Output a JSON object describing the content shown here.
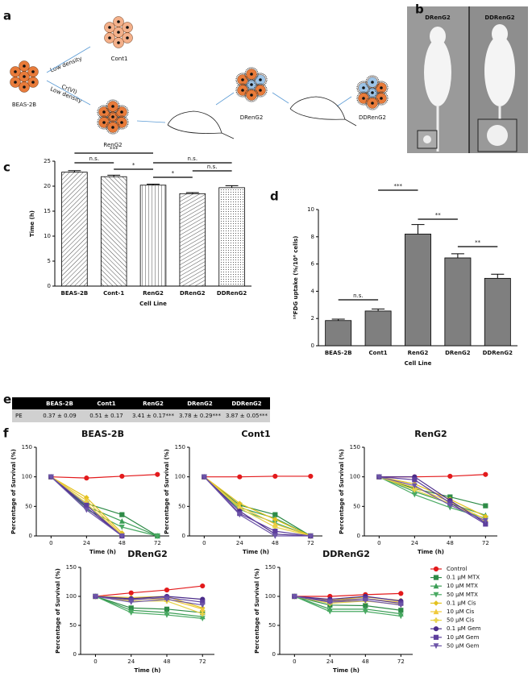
{
  "panel_labels": [
    "a",
    "b",
    "c",
    "d",
    "e",
    "f"
  ],
  "diagram": {
    "labels": [
      "BEAS-2B",
      "Cont1",
      "Low density",
      "Cr(VI)",
      "Low density",
      "RenG2",
      "DRenG2",
      "DDRenG2"
    ]
  },
  "photo": {
    "labels": [
      "DRenG2",
      "DDRenG2"
    ]
  },
  "table": {
    "header": [
      "BEAS-2B",
      "Cont1",
      "RenG2",
      "DRenG2",
      "DDRenG2"
    ],
    "rows": [
      [
        "PE",
        "0.37 ± 0.09",
        "0.51 ± 0.17",
        "3.41 ± 0.17***",
        "3.78 ± 0.29***",
        "3.87 ± 0.05***"
      ]
    ]
  },
  "chart_data": [
    {
      "type": "bar",
      "pattern": true,
      "color": "#222222",
      "ylabel": "Time (h)",
      "xlabel": "Cell Line",
      "categories": [
        "BEAS-2B",
        "Cont-1",
        "RenG2",
        "DRenG2",
        "DDRenG2"
      ],
      "values": [
        22.8,
        21.9,
        20.2,
        18.5,
        19.7
      ],
      "errors": [
        0.3,
        0.3,
        0.2,
        0.2,
        0.4
      ],
      "ylim": [
        0,
        25
      ],
      "yticks": [
        0,
        5,
        10,
        15,
        20,
        25
      ],
      "annotations": [
        "***",
        "n.s.",
        "n.s.",
        "*",
        "*",
        "n.s."
      ]
    },
    {
      "type": "bar",
      "color": "#7f7f7f",
      "ylabel": "¹⁸FDG uptake (%/10⁶ cells)",
      "xlabel": "Cell Line",
      "categories": [
        "BEAS-2B",
        "Cont1",
        "RenG2",
        "DRenG2",
        "DDRenG2"
      ],
      "values": [
        1.85,
        2.55,
        8.2,
        6.45,
        4.95
      ],
      "errors": [
        0.1,
        0.15,
        0.7,
        0.3,
        0.3
      ],
      "ylim": [
        0,
        10
      ],
      "yticks": [
        0,
        2,
        4,
        6,
        8,
        10
      ],
      "annotations": [
        "n.s.",
        "***",
        "**",
        "**"
      ]
    },
    {
      "type": "line",
      "title": "BEAS-2B",
      "xlabel": "Time (h)",
      "ylabel": "Percentage of Survival (%)",
      "x": [
        0,
        24,
        48,
        72
      ],
      "xlim": [
        -10,
        80
      ],
      "xticks": [
        0,
        24,
        48,
        72
      ],
      "ylim": [
        0,
        150
      ],
      "yticks": [
        0,
        50,
        100,
        150
      ],
      "series": [
        {
          "color": "#e31a1c",
          "marker": "circle",
          "values": [
            100,
            98,
            101,
            104
          ]
        },
        {
          "color": "#2e8b47",
          "marker": "square",
          "values": [
            100,
            55,
            36,
            0
          ]
        },
        {
          "color": "#3a9d55",
          "marker": "triangle",
          "values": [
            100,
            50,
            25,
            0
          ]
        },
        {
          "color": "#4aaa63",
          "marker": "triangle-down",
          "values": [
            100,
            45,
            15,
            0
          ]
        },
        {
          "color": "#e3c21f",
          "marker": "diamond",
          "values": [
            100,
            65,
            5,
            null
          ]
        },
        {
          "color": "#f0c93a",
          "marker": "triangle",
          "values": [
            100,
            60,
            2,
            null
          ]
        },
        {
          "color": "#e8d34a",
          "marker": "plus",
          "values": [
            100,
            55,
            0,
            null
          ]
        },
        {
          "color": "#4b2c8a",
          "marker": "circle",
          "values": [
            100,
            48,
            0,
            null
          ]
        },
        {
          "color": "#5e3f9e",
          "marker": "square",
          "values": [
            100,
            52,
            0,
            null
          ]
        },
        {
          "color": "#6d55a8",
          "marker": "triangle-down",
          "values": [
            100,
            44,
            0,
            null
          ]
        }
      ]
    },
    {
      "type": "line",
      "title": "Cont1",
      "xlabel": "Time (h)",
      "ylabel": "Percentage of Survival (%)",
      "x": [
        0,
        24,
        48,
        72
      ],
      "xlim": [
        -10,
        80
      ],
      "xticks": [
        0,
        24,
        48,
        72
      ],
      "ylim": [
        0,
        150
      ],
      "yticks": [
        0,
        50,
        100,
        150
      ],
      "series": [
        {
          "color": "#e31a1c",
          "marker": "circle",
          "values": [
            100,
            100,
            101,
            101
          ]
        },
        {
          "color": "#2e8b47",
          "marker": "square",
          "values": [
            100,
            52,
            36,
            0
          ]
        },
        {
          "color": "#3a9d55",
          "marker": "triangle",
          "values": [
            100,
            48,
            30,
            0
          ]
        },
        {
          "color": "#4aaa63",
          "marker": "triangle-down",
          "values": [
            100,
            45,
            22,
            0
          ]
        },
        {
          "color": "#e3c21f",
          "marker": "diamond",
          "values": [
            100,
            55,
            28,
            0
          ]
        },
        {
          "color": "#f0c93a",
          "marker": "triangle",
          "values": [
            100,
            50,
            20,
            0
          ]
        },
        {
          "color": "#e8d34a",
          "marker": "plus",
          "values": [
            100,
            47,
            15,
            0
          ]
        },
        {
          "color": "#4b2c8a",
          "marker": "circle",
          "values": [
            100,
            42,
            3,
            0
          ]
        },
        {
          "color": "#5e3f9e",
          "marker": "square",
          "values": [
            100,
            38,
            8,
            0
          ]
        },
        {
          "color": "#6d55a8",
          "marker": "triangle-down",
          "values": [
            100,
            36,
            0,
            0
          ]
        }
      ]
    },
    {
      "type": "line",
      "title": "RenG2",
      "xlabel": "Time (h)",
      "ylabel": "Percentage of Survival (%)",
      "x": [
        0,
        24,
        48,
        72
      ],
      "xlim": [
        -10,
        80
      ],
      "xticks": [
        0,
        24,
        48,
        72
      ],
      "ylim": [
        0,
        150
      ],
      "yticks": [
        0,
        50,
        100,
        150
      ],
      "series": [
        {
          "color": "#e31a1c",
          "marker": "circle",
          "values": [
            100,
            100,
            101,
            104
          ]
        },
        {
          "color": "#2e8b47",
          "marker": "square",
          "values": [
            100,
            80,
            66,
            51
          ]
        },
        {
          "color": "#3a9d55",
          "marker": "triangle",
          "values": [
            100,
            75,
            55,
            35
          ]
        },
        {
          "color": "#4aaa63",
          "marker": "triangle-down",
          "values": [
            100,
            70,
            48,
            30
          ]
        },
        {
          "color": "#e3c21f",
          "marker": "diamond",
          "values": [
            100,
            88,
            62,
            33
          ]
        },
        {
          "color": "#f0c93a",
          "marker": "triangle",
          "values": [
            100,
            82,
            58,
            28
          ]
        },
        {
          "color": "#e8d34a",
          "marker": "plus",
          "values": [
            100,
            78,
            55,
            25
          ]
        },
        {
          "color": "#4b2c8a",
          "marker": "circle",
          "values": [
            100,
            100,
            60,
            22
          ]
        },
        {
          "color": "#5e3f9e",
          "marker": "square",
          "values": [
            100,
            95,
            56,
            20
          ]
        },
        {
          "color": "#6d55a8",
          "marker": "triangle-down",
          "values": [
            100,
            85,
            52,
            26
          ]
        }
      ]
    },
    {
      "type": "line",
      "title": "DRenG2",
      "xlabel": "Time (h)",
      "ylabel": "Percentage of Survival (%)",
      "x": [
        0,
        24,
        48,
        72
      ],
      "xlim": [
        -10,
        80
      ],
      "xticks": [
        0,
        24,
        48,
        72
      ],
      "ylim": [
        0,
        150
      ],
      "yticks": [
        0,
        50,
        100,
        150
      ],
      "series": [
        {
          "color": "#e31a1c",
          "marker": "circle",
          "values": [
            100,
            106,
            111,
            118
          ]
        },
        {
          "color": "#2e8b47",
          "marker": "square",
          "values": [
            100,
            80,
            78,
            72
          ]
        },
        {
          "color": "#3a9d55",
          "marker": "triangle",
          "values": [
            100,
            76,
            72,
            65
          ]
        },
        {
          "color": "#4aaa63",
          "marker": "triangle-down",
          "values": [
            100,
            72,
            68,
            62
          ]
        },
        {
          "color": "#e3c21f",
          "marker": "diamond",
          "values": [
            100,
            98,
            100,
            80
          ]
        },
        {
          "color": "#f0c93a",
          "marker": "triangle",
          "values": [
            100,
            95,
            96,
            78
          ]
        },
        {
          "color": "#e8d34a",
          "marker": "plus",
          "values": [
            100,
            92,
            92,
            70
          ]
        },
        {
          "color": "#4b2c8a",
          "marker": "circle",
          "values": [
            100,
            96,
            100,
            95
          ]
        },
        {
          "color": "#5e3f9e",
          "marker": "square",
          "values": [
            100,
            94,
            98,
            90
          ]
        },
        {
          "color": "#6d55a8",
          "marker": "triangle-down",
          "values": [
            100,
            90,
            95,
            85
          ]
        }
      ]
    },
    {
      "type": "line",
      "title": "DDRenG2",
      "xlabel": "Time (h)",
      "ylabel": "Percentage of Survival (%)",
      "legend": "right",
      "x": [
        0,
        24,
        48,
        72
      ],
      "xlim": [
        -10,
        80
      ],
      "xticks": [
        0,
        24,
        48,
        72
      ],
      "ylim": [
        0,
        150
      ],
      "yticks": [
        0,
        50,
        100,
        150
      ],
      "series": [
        {
          "name": "Control",
          "color": "#e31a1c",
          "marker": "circle",
          "values": [
            100,
            100,
            103,
            105
          ]
        },
        {
          "name": "0.1 µM MTX",
          "color": "#2e8b47",
          "marker": "square",
          "values": [
            100,
            85,
            84,
            76
          ]
        },
        {
          "name": "10 µM MTX",
          "color": "#3a9d55",
          "marker": "triangle",
          "values": [
            100,
            78,
            78,
            70
          ]
        },
        {
          "name": "50 µM MTX",
          "color": "#4aaa63",
          "marker": "triangle-down",
          "values": [
            100,
            74,
            74,
            66
          ]
        },
        {
          "name": "0.1 µM Cis",
          "color": "#e3c21f",
          "marker": "diamond",
          "values": [
            100,
            93,
            99,
            93
          ]
        },
        {
          "name": "10 µM Cis",
          "color": "#f0c93a",
          "marker": "triangle",
          "values": [
            100,
            90,
            96,
            90
          ]
        },
        {
          "name": "50 µM Cis",
          "color": "#e8d34a",
          "marker": "plus",
          "values": [
            100,
            88,
            92,
            86
          ]
        },
        {
          "name": "0.1 µM Gem",
          "color": "#4b2c8a",
          "marker": "circle",
          "values": [
            100,
            95,
            100,
            92
          ]
        },
        {
          "name": "10 µM Gem",
          "color": "#5e3f9e",
          "marker": "square",
          "values": [
            100,
            92,
            96,
            88
          ]
        },
        {
          "name": "50 µM Gem",
          "color": "#6d55a8",
          "marker": "triangle-down",
          "values": [
            100,
            90,
            93,
            85
          ]
        }
      ]
    }
  ]
}
